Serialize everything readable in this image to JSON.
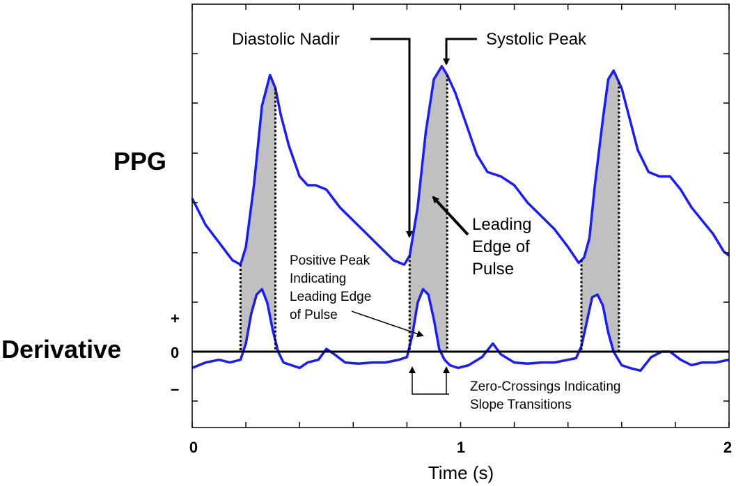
{
  "chart_data": {
    "type": "line",
    "xlabel": "Time (s)",
    "xlim": [
      0,
      2
    ],
    "x_ticks": [
      "0",
      "1",
      "2"
    ],
    "grid": false,
    "series": [
      {
        "name": "PPG",
        "x": [
          0.0,
          0.05,
          0.1,
          0.15,
          0.18,
          0.2,
          0.23,
          0.26,
          0.29,
          0.31,
          0.33,
          0.36,
          0.4,
          0.43,
          0.46,
          0.5,
          0.55,
          0.6,
          0.65,
          0.7,
          0.75,
          0.79,
          0.81,
          0.84,
          0.87,
          0.9,
          0.93,
          0.95,
          0.98,
          1.02,
          1.06,
          1.1,
          1.15,
          1.2,
          1.25,
          1.3,
          1.35,
          1.4,
          1.44,
          1.46,
          1.48,
          1.5,
          1.53,
          1.55,
          1.57,
          1.6,
          1.63,
          1.66,
          1.7,
          1.74,
          1.78,
          1.82,
          1.86,
          1.9,
          1.94,
          1.98,
          2.0
        ],
        "y": [
          3.05,
          2.75,
          2.55,
          2.35,
          2.3,
          2.5,
          3.2,
          4.1,
          4.45,
          4.3,
          4.0,
          3.65,
          3.3,
          3.2,
          3.2,
          3.15,
          2.95,
          2.8,
          2.65,
          2.5,
          2.35,
          2.3,
          2.4,
          2.95,
          3.8,
          4.4,
          4.55,
          4.45,
          4.25,
          3.9,
          3.55,
          3.35,
          3.3,
          3.2,
          3.0,
          2.85,
          2.7,
          2.5,
          2.32,
          2.38,
          2.6,
          3.2,
          3.95,
          4.4,
          4.5,
          4.3,
          3.95,
          3.6,
          3.35,
          3.3,
          3.3,
          3.15,
          2.95,
          2.8,
          2.65,
          2.45,
          2.4
        ]
      },
      {
        "name": "Derivative",
        "x": [
          0.0,
          0.05,
          0.1,
          0.14,
          0.18,
          0.2,
          0.22,
          0.24,
          0.26,
          0.28,
          0.3,
          0.32,
          0.34,
          0.37,
          0.4,
          0.43,
          0.47,
          0.5,
          0.53,
          0.57,
          0.62,
          0.67,
          0.72,
          0.77,
          0.8,
          0.82,
          0.84,
          0.86,
          0.88,
          0.9,
          0.92,
          0.94,
          0.96,
          0.99,
          1.03,
          1.08,
          1.12,
          1.15,
          1.2,
          1.25,
          1.3,
          1.35,
          1.4,
          1.43,
          1.45,
          1.47,
          1.49,
          1.51,
          1.53,
          1.55,
          1.57,
          1.6,
          1.63,
          1.67,
          1.71,
          1.75,
          1.78,
          1.82,
          1.86,
          1.9,
          1.95,
          2.0
        ],
        "y": [
          -0.3,
          -0.2,
          -0.15,
          -0.2,
          -0.15,
          0.15,
          0.7,
          1.05,
          1.15,
          0.9,
          0.4,
          0.0,
          -0.2,
          -0.25,
          -0.3,
          -0.2,
          -0.15,
          0.05,
          -0.05,
          -0.2,
          -0.22,
          -0.2,
          -0.2,
          -0.15,
          -0.1,
          0.3,
          0.9,
          1.15,
          1.05,
          0.6,
          0.05,
          -0.15,
          -0.25,
          -0.3,
          -0.25,
          -0.1,
          0.15,
          -0.05,
          -0.2,
          -0.22,
          -0.2,
          -0.2,
          -0.15,
          -0.12,
          0.1,
          0.55,
          1.0,
          1.05,
          0.85,
          0.35,
          0.0,
          -0.25,
          -0.3,
          -0.35,
          -0.1,
          0.0,
          0.0,
          -0.15,
          -0.25,
          -0.2,
          -0.2,
          -0.15
        ]
      }
    ],
    "shaded_intervals_s": [
      [
        0.18,
        0.31
      ],
      [
        0.81,
        0.95
      ],
      [
        1.45,
        1.59
      ]
    ],
    "zero_line": true,
    "colors": {
      "curve": "#1a1aff",
      "fill": "#c0c0c0"
    }
  },
  "labels": {
    "ppg": "PPG",
    "derivative": "Derivative",
    "plus": "+",
    "zero": "0",
    "minus": "–"
  },
  "annotations": {
    "diastolic_nadir": "Diastolic Nadir",
    "systolic_peak": "Systolic Peak",
    "leading_edge": [
      "Leading",
      "Edge of",
      "Pulse"
    ],
    "positive_peak": [
      "Positive Peak",
      "Indicating",
      "Leading Edge",
      "of Pulse"
    ],
    "zero_crossings": [
      "Zero-Crossings Indicating",
      "Slope Transitions"
    ]
  }
}
